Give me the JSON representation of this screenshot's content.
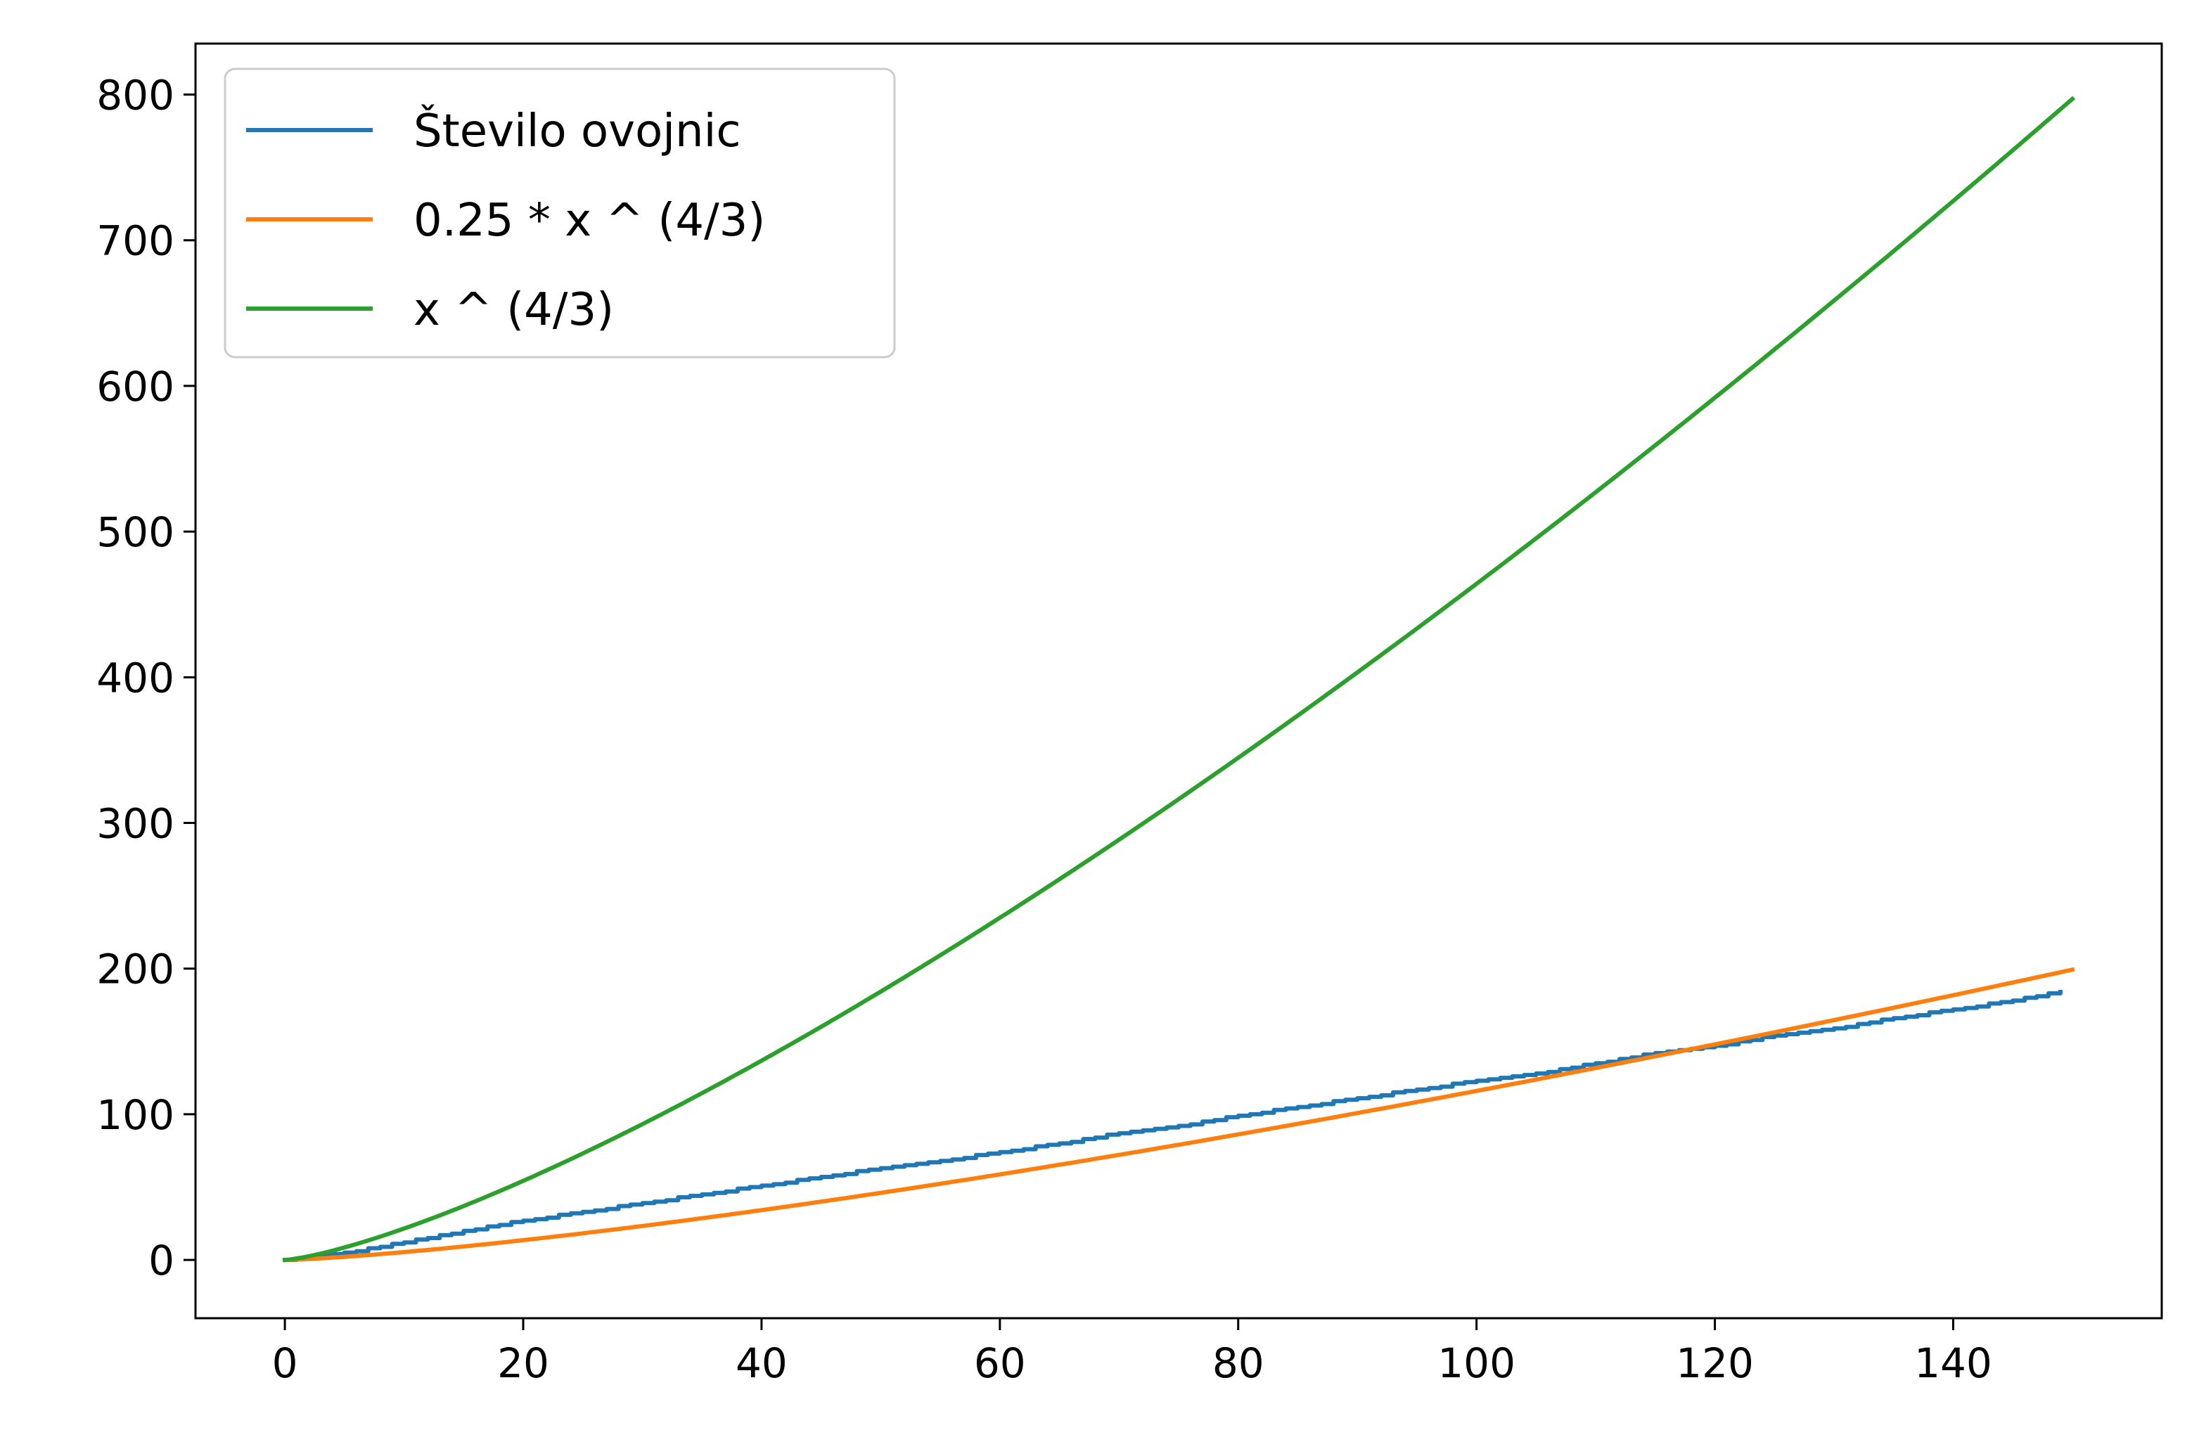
{
  "chart_data": {
    "type": "line",
    "title": "",
    "xlabel": "",
    "ylabel": "",
    "xlim": [
      -7.5,
      157.5
    ],
    "ylim": [
      -40,
      835
    ],
    "xticks": [
      0,
      20,
      40,
      60,
      80,
      100,
      120,
      140
    ],
    "yticks": [
      0,
      100,
      200,
      300,
      400,
      500,
      600,
      700,
      800
    ],
    "grid": false,
    "legend": {
      "position": "top-left"
    },
    "series": [
      {
        "name": "Število ovojnic",
        "color": "#1f77b4",
        "style": "step",
        "x": [
          0,
          5,
          10,
          15,
          20,
          25,
          30,
          35,
          40,
          45,
          50,
          55,
          60,
          65,
          70,
          75,
          80,
          85,
          90,
          95,
          100,
          105,
          110,
          115,
          120,
          125,
          130,
          135,
          140,
          145,
          149
        ],
        "y": [
          0,
          5,
          12,
          20,
          27,
          33,
          39,
          45,
          51,
          57,
          63,
          68,
          74,
          80,
          87,
          92,
          99,
          105,
          111,
          117,
          123,
          128,
          135,
          142,
          147,
          154,
          159,
          166,
          172,
          178,
          184
        ]
      },
      {
        "name": "0.25 * x ^ (4/3)",
        "color": "#ff7f0e",
        "formula": "0.25*x^(4/3)",
        "x_range": [
          0,
          150
        ]
      },
      {
        "name": "x ^ (4/3)",
        "color": "#2ca02c",
        "formula": "x^(4/3)",
        "x_range": [
          0,
          150
        ]
      }
    ]
  }
}
